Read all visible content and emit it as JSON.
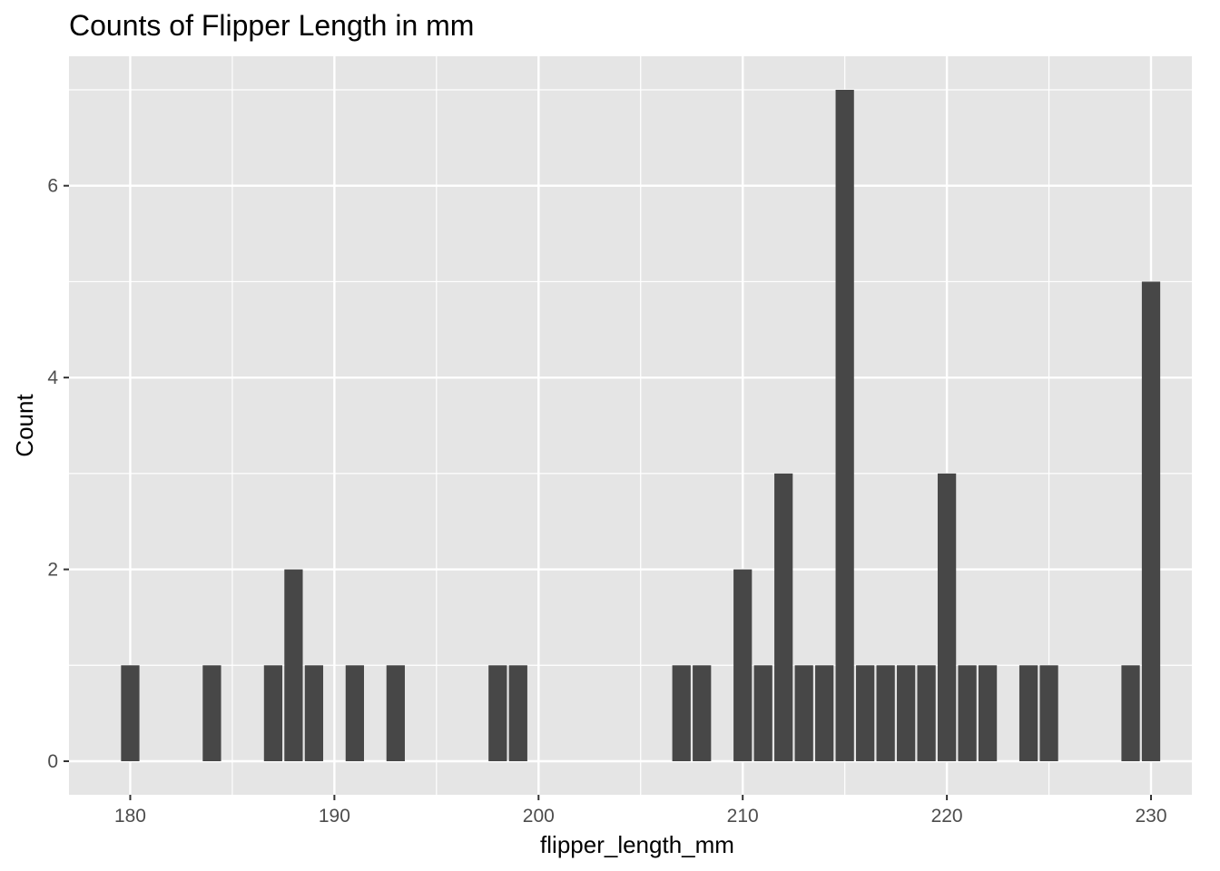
{
  "chart_data": {
    "type": "bar",
    "title": "Counts of Flipper Length in mm",
    "xlabel": "flipper_length_mm",
    "ylabel": "Count",
    "x": [
      180,
      184,
      187,
      188,
      189,
      191,
      193,
      198,
      199,
      207,
      208,
      210,
      211,
      212,
      213,
      214,
      215,
      216,
      217,
      218,
      219,
      220,
      221,
      222,
      224,
      225,
      229,
      230
    ],
    "values": [
      1,
      1,
      1,
      2,
      1,
      1,
      1,
      1,
      1,
      1,
      1,
      2,
      1,
      3,
      1,
      1,
      7,
      1,
      1,
      1,
      1,
      3,
      1,
      1,
      1,
      1,
      1,
      5
    ],
    "xlim": [
      177,
      232
    ],
    "ylim": [
      -0.35,
      7.35
    ],
    "x_ticks": [
      180,
      190,
      200,
      210,
      220,
      230
    ],
    "x_tick_labels": [
      "180",
      "190",
      "200",
      "210",
      "220",
      "230"
    ],
    "y_ticks": [
      0,
      2,
      4,
      6
    ],
    "y_tick_labels": [
      "0",
      "2",
      "4",
      "6"
    ],
    "grid": true,
    "bar_color": "#474747",
    "panel_color": "#e5e5e5",
    "grid_color": "#ffffff"
  }
}
